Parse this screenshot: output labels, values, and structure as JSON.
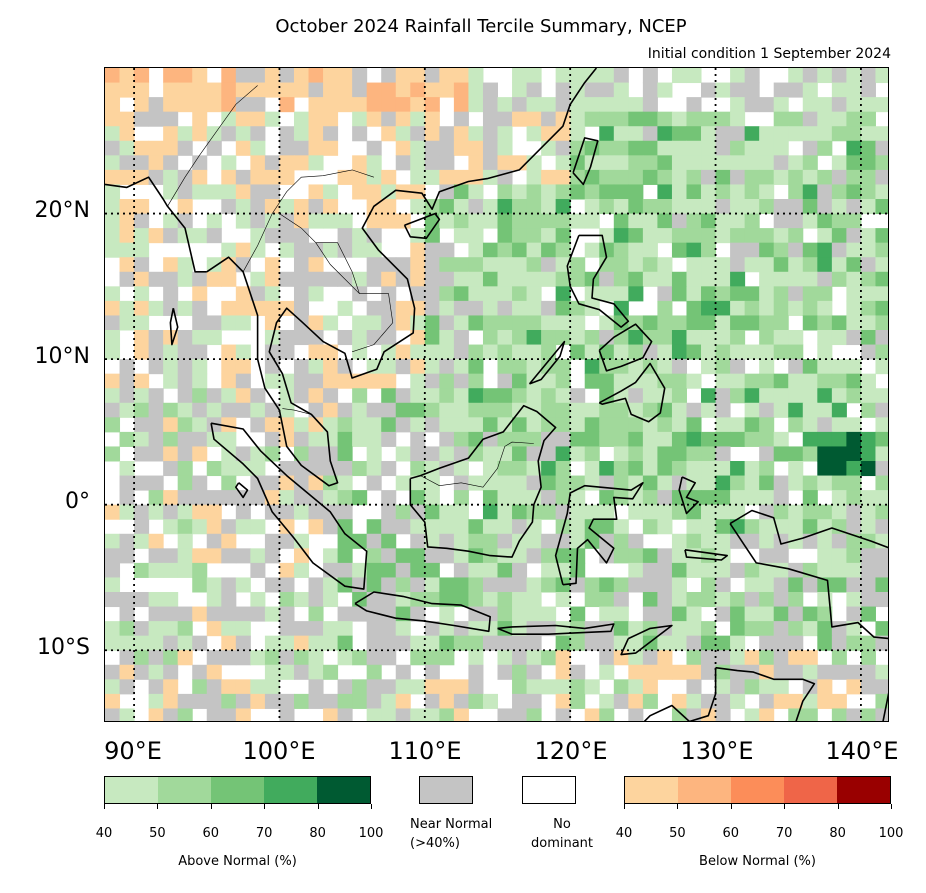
{
  "title": "October 2024 Rainfall Tercile Summary, NCEP",
  "subtitle": "Initial condition 1 September 2024",
  "map": {
    "lon_range": [
      88,
      142
    ],
    "lat_range": [
      -15,
      30
    ],
    "lat_ticks": [
      {
        "value": 20,
        "label": "20°N"
      },
      {
        "value": 10,
        "label": "10°N"
      },
      {
        "value": 0,
        "label": "0°"
      },
      {
        "value": -10,
        "label": "10°S"
      }
    ],
    "lon_ticks": [
      {
        "value": 90,
        "label": "90°E"
      },
      {
        "value": 100,
        "label": "100°E"
      },
      {
        "value": 110,
        "label": "110°E"
      },
      {
        "value": 120,
        "label": "120°E"
      },
      {
        "value": 130,
        "label": "130°E"
      },
      {
        "value": 140,
        "label": "140°E"
      }
    ],
    "gridlines": "dotted"
  },
  "legend": {
    "above": {
      "label": "Above Normal (%)",
      "ticks": [
        "40",
        "50",
        "60",
        "70",
        "80",
        "100"
      ],
      "colors": [
        "#c7e9c0",
        "#a1d99b",
        "#74c476",
        "#41ab5d",
        "#005a32"
      ]
    },
    "near": {
      "label": "Near Normal (>40%)",
      "color": "#c4c4c4"
    },
    "none": {
      "label": "No dominant",
      "color": "#ffffff"
    },
    "below": {
      "label": "Below Normal (%)",
      "ticks": [
        "40",
        "50",
        "60",
        "70",
        "80",
        "100"
      ],
      "colors": [
        "#fdd49e",
        "#fdb57f",
        "#fc8d59",
        "#ef6548",
        "#990000"
      ]
    }
  }
}
